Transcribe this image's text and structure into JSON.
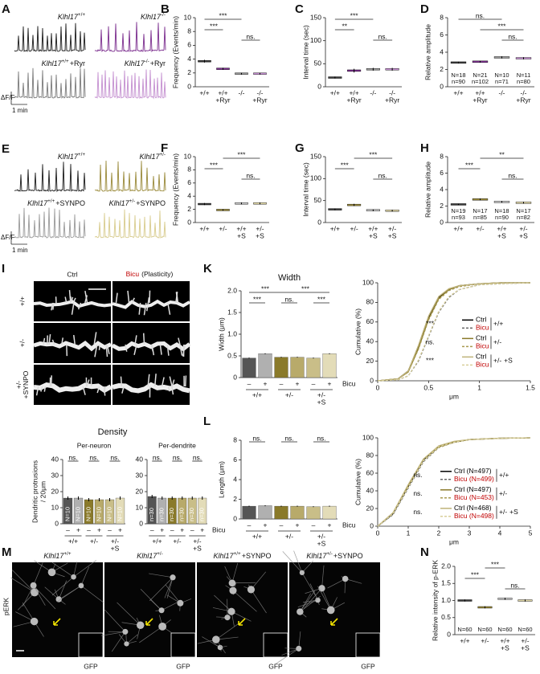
{
  "traces": [
    {
      "letter": "A",
      "labels": [
        [
          "Klhl17",
          "+/+"
        ],
        [
          "Klhl17",
          "-/-"
        ],
        [
          "Klhl17",
          "+/+",
          "+Ryr"
        ],
        [
          "Klhl17",
          "-/-",
          "+Ryr"
        ]
      ],
      "colors": [
        "#1a1a1a",
        "#7b2d8e",
        "#7a7a7a",
        "#c48fd0"
      ],
      "scale_y": "ΔF/F",
      "scale_x": "1 min"
    },
    {
      "letter": "E",
      "labels": [
        [
          "Klhl17",
          "+/+"
        ],
        [
          "Klhl17",
          "+/-"
        ],
        [
          "Klhl17",
          "+/+",
          "+SYNPO"
        ],
        [
          "Klhl17",
          "+/-",
          "+SYNPO"
        ]
      ],
      "colors": [
        "#1a1a1a",
        "#9a8a3a",
        "#9a9a9a",
        "#d8cc8e"
      ],
      "scale_y": "ΔF/F",
      "scale_x": "1 min"
    }
  ],
  "images_i": {
    "letter": "I",
    "columns": [
      "Ctrl",
      "Bicu",
      "(Plasticity)"
    ],
    "rows": [
      [
        "+/+"
      ],
      [
        "+/-"
      ],
      [
        "+/-",
        "+SYNPO"
      ]
    ]
  },
  "density_title": "Density",
  "images_m": {
    "letter": "M",
    "row_label": "pERK",
    "inset_label": "GFP",
    "titles": [
      [
        "Klhl17",
        "+/+"
      ],
      [
        "Klhl17",
        "+/-"
      ],
      [
        "Klhl17",
        "+/+",
        "+SYNPO"
      ],
      [
        "Klhl17",
        "+/-",
        "+SYNPO"
      ]
    ]
  },
  "chart_data": [
    {
      "type": "strip",
      "letter": "B",
      "ylabel": [
        "Frequency (Events/min)"
      ],
      "ylim": [
        0,
        10
      ],
      "yticks": [
        0,
        2,
        4,
        6,
        8,
        10
      ],
      "categories": [
        [
          "+/+"
        ],
        [
          "+/+",
          "+Ryr"
        ],
        [
          "-/-"
        ],
        [
          "-/-",
          "+Ryr"
        ]
      ],
      "colors": [
        "#3a3a3a",
        "#7b2d8e",
        "#999999",
        "#c48fd0"
      ],
      "values": [
        3.7,
        2.6,
        1.9,
        1.9
      ],
      "errors": [
        0.2,
        0.15,
        0.12,
        0.1
      ],
      "significance": [
        "***",
        "***",
        "ns."
      ]
    },
    {
      "type": "strip",
      "letter": "C",
      "ylabel": [
        "Interval time (sec)"
      ],
      "ylim": [
        0,
        150
      ],
      "yticks": [
        0,
        50,
        100,
        150
      ],
      "categories": [
        [
          "+/+"
        ],
        [
          "+/+",
          "+Ryr"
        ],
        [
          "-/-"
        ],
        [
          "-/-",
          "+Ryr"
        ]
      ],
      "colors": [
        "#3a3a3a",
        "#7b2d8e",
        "#999999",
        "#c48fd0"
      ],
      "values": [
        20,
        35,
        38,
        38
      ],
      "errors": [
        2,
        4,
        3,
        3
      ],
      "significance": [
        "**",
        "***",
        "ns."
      ]
    },
    {
      "type": "strip",
      "letter": "D",
      "ylabel": [
        "Relative amplitude"
      ],
      "ylim": [
        0,
        8
      ],
      "yticks": [
        0,
        2,
        4,
        6,
        8
      ],
      "categories": [
        [
          "+/+"
        ],
        [
          "+/+",
          "+Ryr"
        ],
        [
          "-/-"
        ],
        [
          "-/-",
          "+Ryr"
        ]
      ],
      "colors": [
        "#3a3a3a",
        "#7b2d8e",
        "#999999",
        "#c48fd0"
      ],
      "values": [
        2.8,
        2.9,
        3.4,
        3.3
      ],
      "errors": [
        0.1,
        0.1,
        0.12,
        0.12
      ],
      "significance": [
        "ns.",
        "***",
        "ns."
      ],
      "sample_labels": [
        [
          "N=18",
          "n=90"
        ],
        [
          "N=21",
          "n=102"
        ],
        [
          "N=10",
          "n=71"
        ],
        [
          "N=11",
          "n=80"
        ]
      ]
    },
    {
      "type": "strip",
      "letter": "F",
      "ylabel": [
        "Frequency (Events/min)"
      ],
      "ylim": [
        0,
        10
      ],
      "yticks": [
        0,
        2,
        4,
        6,
        8,
        10
      ],
      "categories": [
        [
          "+/+"
        ],
        [
          "+/-"
        ],
        [
          "+/+",
          "+S"
        ],
        [
          "+/-",
          "+S"
        ]
      ],
      "colors": [
        "#3a3a3a",
        "#9a8a3a",
        "#c8c8c8",
        "#e0d7a8"
      ],
      "values": [
        2.8,
        1.9,
        2.9,
        2.9
      ],
      "errors": [
        0.15,
        0.1,
        0.15,
        0.15
      ],
      "significance": [
        "***",
        "***",
        "ns."
      ]
    },
    {
      "type": "strip",
      "letter": "G",
      "ylabel": [
        "Interval time (sec)"
      ],
      "ylim": [
        0,
        150
      ],
      "yticks": [
        0,
        50,
        100,
        150
      ],
      "categories": [
        [
          "+/+"
        ],
        [
          "+/-"
        ],
        [
          "+/+",
          "+S"
        ],
        [
          "+/-",
          "+S"
        ]
      ],
      "colors": [
        "#3a3a3a",
        "#9a8a3a",
        "#c8c8c8",
        "#e0d7a8"
      ],
      "values": [
        30,
        40,
        28,
        27
      ],
      "errors": [
        2,
        2.5,
        2,
        2
      ],
      "significance": [
        "***",
        "***",
        "ns."
      ]
    },
    {
      "type": "strip",
      "letter": "H",
      "ylabel": [
        "Relative amplitude"
      ],
      "ylim": [
        0,
        8
      ],
      "yticks": [
        0,
        2,
        4,
        6,
        8
      ],
      "categories": [
        [
          "+/+"
        ],
        [
          "+/-"
        ],
        [
          "+/+",
          "+S"
        ],
        [
          "+/-",
          "+S"
        ]
      ],
      "colors": [
        "#3a3a3a",
        "#9a8a3a",
        "#c8c8c8",
        "#e0d7a8"
      ],
      "values": [
        2.2,
        2.8,
        2.5,
        2.4
      ],
      "errors": [
        0.08,
        0.12,
        0.1,
        0.1
      ],
      "significance": [
        "***",
        "**",
        "ns."
      ],
      "sample_labels": [
        [
          "N=19",
          "n=93"
        ],
        [
          "N=17",
          "n=85"
        ],
        [
          "N=18",
          "n=90"
        ],
        [
          "N=17",
          "n=82"
        ]
      ]
    },
    {
      "type": "bar",
      "letter": "K",
      "title": "Width",
      "ylabel": [
        "Width (μm)"
      ],
      "ylim": [
        0,
        2
      ],
      "yticks": [
        0,
        0.5,
        {
          "value": 1,
          "label": "1.0"
        },
        1.5,
        {
          "value": 2,
          "label": "2.0"
        }
      ],
      "categories": [
        "–",
        "+",
        "–",
        "+",
        "–",
        "+"
      ],
      "groups": [
        [
          "+/+"
        ],
        [
          "+/-"
        ],
        [
          "+/-",
          "+S"
        ]
      ],
      "factor_label": "Bicu",
      "colors": [
        "#555555",
        "#b0b0b0",
        "#8a7a2a",
        "#b8aa6a",
        "#c9be88",
        "#e3dcb8"
      ],
      "values": [
        0.45,
        0.55,
        0.47,
        0.47,
        0.45,
        0.55
      ],
      "errors": [
        0.01,
        0.01,
        0.01,
        0.01,
        0.01,
        0.01
      ],
      "significance": [
        "***",
        "***",
        "***",
        "ns.",
        "***"
      ]
    },
    {
      "type": "cumulative",
      "ylabel": [
        "Cumulative (%)"
      ],
      "xlabel": "μm",
      "xlim": [
        0,
        1.5
      ],
      "xticks": [
        0,
        0.5,
        1,
        1.5
      ],
      "ylim": [
        0,
        100
      ],
      "yticks": [
        0,
        20,
        40,
        60,
        80,
        100
      ],
      "groups": [
        [
          "+/+"
        ],
        [
          "+/-"
        ],
        [
          "+/-",
          "+S"
        ]
      ],
      "significance": [
        "***",
        "ns.",
        "***"
      ],
      "x": [
        0,
        0.2,
        0.3,
        0.4,
        0.5,
        0.6,
        0.7,
        0.8,
        1.0,
        1.2,
        1.5
      ],
      "series": [
        {
          "name": "Ctrl",
          "color": "#000000",
          "label_color": "#000000",
          "dash": false,
          "values": [
            0,
            2,
            10,
            35,
            65,
            85,
            93,
            97,
            99,
            100,
            100
          ]
        },
        {
          "name": "Bicu",
          "color": "#666666",
          "label_color": "#c00000",
          "dash": true,
          "values": [
            0,
            1,
            5,
            20,
            45,
            70,
            85,
            93,
            98,
            99,
            100
          ]
        },
        {
          "name": "Ctrl",
          "color": "#8a7a2a",
          "label_color": "#000000",
          "dash": false,
          "values": [
            0,
            2,
            9,
            33,
            63,
            84,
            93,
            97,
            99,
            100,
            100
          ]
        },
        {
          "name": "Bicu",
          "color": "#a89a50",
          "label_color": "#c00000",
          "dash": true,
          "values": [
            0,
            2,
            9,
            32,
            62,
            83,
            92,
            96,
            99,
            100,
            100
          ]
        },
        {
          "name": "Ctrl",
          "color": "#bfb37a",
          "label_color": "#000000",
          "dash": false,
          "values": [
            0,
            2,
            10,
            36,
            66,
            86,
            94,
            97,
            99,
            100,
            100
          ]
        },
        {
          "name": "Bicu",
          "color": "#d8cf9a",
          "label_color": "#c00000",
          "dash": true,
          "values": [
            0,
            1,
            5,
            21,
            46,
            71,
            86,
            93,
            98,
            99,
            100
          ]
        }
      ]
    },
    {
      "type": "bar",
      "subtitle": "Per-neuron",
      "ylabel": [
        "Dendritic protrusions",
        "/ 20μm"
      ],
      "ylim": [
        0,
        40
      ],
      "yticks": [
        0,
        10,
        20,
        30,
        40
      ],
      "categories": [
        "–",
        "+",
        "–",
        "+",
        "–",
        "+"
      ],
      "groups": [
        [
          "+/+"
        ],
        [
          "+/-"
        ],
        [
          "+/-",
          "+S"
        ]
      ],
      "colors": [
        "#555555",
        "#b0b0b0",
        "#8a7a2a",
        "#b8aa6a",
        "#c9be88",
        "#e3dcb8"
      ],
      "values": [
        16,
        16,
        15,
        15,
        15,
        16
      ],
      "errors": [
        1,
        1,
        1,
        1,
        1,
        1
      ],
      "significance": [
        "ns.",
        "ns.",
        "ns."
      ],
      "sample_labels": [
        "N=10",
        "N=10",
        "N=10",
        "N=10",
        "N=10",
        "N=10"
      ]
    },
    {
      "type": "bar",
      "subtitle": "Per-dendrite",
      "ylim": [
        0,
        40
      ],
      "yticks": [
        0,
        10,
        20,
        30,
        40
      ],
      "categories": [
        "–",
        "+",
        "–",
        "+",
        "–",
        "+"
      ],
      "groups": [
        [
          "+/+"
        ],
        [
          "+/-"
        ],
        [
          "+/-",
          "+S"
        ]
      ],
      "factor_label": "Bicu",
      "colors": [
        "#555555",
        "#b0b0b0",
        "#8a7a2a",
        "#b8aa6a",
        "#c9be88",
        "#e3dcb8"
      ],
      "values": [
        17,
        16,
        16,
        16,
        16,
        16
      ],
      "errors": [
        1,
        1,
        1,
        1,
        1,
        1
      ],
      "significance": [
        "ns.",
        "ns.",
        "ns."
      ],
      "sample_labels": [
        "n=30",
        "n=30",
        "n=30",
        "n=30",
        "n=30",
        "n=30"
      ]
    },
    {
      "type": "bar",
      "letter": "L",
      "ylabel": [
        "Length (μm)"
      ],
      "ylim": [
        0,
        8
      ],
      "yticks": [
        0,
        2,
        4,
        6,
        8
      ],
      "categories": [
        "–",
        "+",
        "–",
        "+",
        "–",
        "+"
      ],
      "groups": [
        [
          "+/+"
        ],
        [
          "+/-"
        ],
        [
          "+/-",
          "+S"
        ]
      ],
      "factor_label": "Bicu",
      "colors": [
        "#555555",
        "#b0b0b0",
        "#8a7a2a",
        "#b8aa6a",
        "#c9be88",
        "#e3dcb8"
      ],
      "values": [
        1.3,
        1.35,
        1.3,
        1.3,
        1.25,
        1.3
      ],
      "errors": [
        0.05,
        0.05,
        0.05,
        0.05,
        0.05,
        0.05
      ],
      "significance": [
        "ns.",
        "ns.",
        "ns."
      ]
    },
    {
      "type": "cumulative",
      "ylabel": [
        "Cumulative (%)"
      ],
      "xlabel": "μm",
      "xlim": [
        0,
        5
      ],
      "xticks": [
        0,
        1,
        2,
        3,
        4,
        5
      ],
      "ylim": [
        0,
        100
      ],
      "yticks": [
        0,
        20,
        40,
        60,
        80,
        100
      ],
      "groups": [
        [
          "+/+"
        ],
        [
          "+/-"
        ],
        [
          "+/-",
          "+S"
        ]
      ],
      "significance": [
        "ns.",
        "ns.",
        "ns."
      ],
      "x": [
        0,
        0.5,
        1,
        1.5,
        2,
        2.5,
        3,
        4,
        5
      ],
      "series": [
        {
          "name": "Ctrl (N=497)",
          "color": "#000000",
          "label_color": "#000000",
          "dash": false,
          "values": [
            0,
            14,
            45,
            75,
            90,
            95,
            98,
            99.5,
            100
          ]
        },
        {
          "name": "Bicu (N=499)",
          "color": "#666666",
          "label_color": "#c00000",
          "dash": true,
          "values": [
            0,
            13,
            43,
            73,
            89,
            95,
            98,
            99.5,
            100
          ]
        },
        {
          "name": "Ctrl (N=497)",
          "color": "#8a7a2a",
          "label_color": "#000000",
          "dash": false,
          "values": [
            0,
            15,
            46,
            76,
            90,
            95,
            98,
            99.5,
            100
          ]
        },
        {
          "name": "Bicu (N=453)",
          "color": "#a89a50",
          "label_color": "#c00000",
          "dash": true,
          "values": [
            0,
            14,
            44,
            74,
            89,
            95,
            98,
            99.5,
            100
          ]
        },
        {
          "name": "Ctrl (N=468)",
          "color": "#bfb37a",
          "label_color": "#000000",
          "dash": false,
          "values": [
            0,
            15,
            47,
            76,
            91,
            96,
            98,
            99.5,
            100
          ]
        },
        {
          "name": "Bicu (N=498)",
          "color": "#d8cf9a",
          "label_color": "#c00000",
          "dash": true,
          "values": [
            0,
            14,
            44,
            74,
            90,
            95,
            98,
            99.5,
            100
          ]
        }
      ]
    },
    {
      "type": "strip",
      "letter": "N",
      "ylabel": [
        "Relative intensity of p-ERK"
      ],
      "ylim": [
        0,
        2
      ],
      "yticks": [
        0,
        0.5,
        {
          "value": 1,
          "label": "1.0"
        },
        1.5,
        {
          "value": 2,
          "label": "2.0"
        }
      ],
      "categories": [
        [
          "+/+"
        ],
        [
          "+/-"
        ],
        [
          "+/+",
          "+S"
        ],
        [
          "+/-",
          "+S"
        ]
      ],
      "colors": [
        "#3a3a3a",
        "#9a8a3a",
        "#c8c8c8",
        "#e0d7a8"
      ],
      "values": [
        1.0,
        0.8,
        1.05,
        1.0
      ],
      "errors": [
        0.03,
        0.03,
        0.03,
        0.03
      ],
      "significance": [
        "***",
        "***",
        "ns."
      ],
      "sample_labels": [
        [
          "N=60"
        ],
        [
          "N=60"
        ],
        [
          "N=60"
        ],
        [
          "N=60"
        ]
      ]
    }
  ]
}
